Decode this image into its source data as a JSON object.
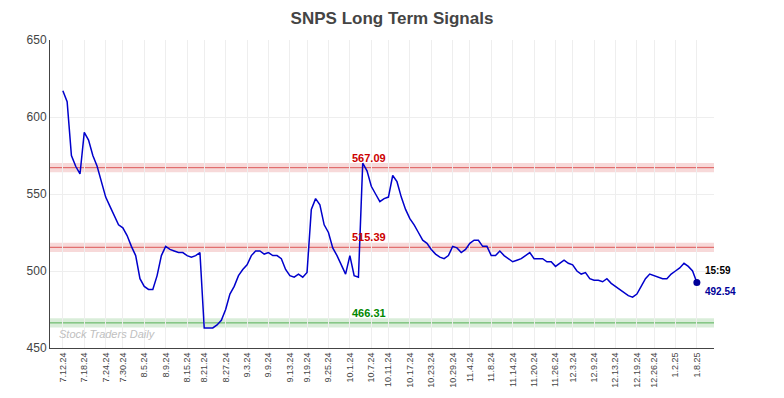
{
  "chart_data": {
    "type": "line",
    "title": "SNPS Long Term Signals",
    "color": "#0000cc",
    "grid": true,
    "ylim": [
      450,
      650
    ],
    "yticks": [
      450,
      500,
      550,
      600,
      650
    ],
    "categories": [
      "7.12.24",
      null,
      null,
      null,
      null,
      "7.18.24",
      null,
      null,
      null,
      null,
      "7.24.24",
      null,
      null,
      null,
      "7.30.24",
      null,
      null,
      null,
      null,
      "8.5.24",
      null,
      null,
      null,
      null,
      "8.9.24",
      null,
      null,
      null,
      null,
      "8.15.24",
      null,
      null,
      null,
      "8.21.24",
      null,
      null,
      null,
      null,
      "8.27.24",
      null,
      null,
      null,
      null,
      "9.3.24",
      null,
      null,
      null,
      null,
      "9.9.24",
      null,
      null,
      null,
      null,
      "9.13.24",
      null,
      null,
      null,
      "9.19.24",
      null,
      null,
      null,
      null,
      "9.25.24",
      null,
      null,
      null,
      null,
      "10.1.24",
      null,
      null,
      null,
      null,
      "10.7.24",
      null,
      null,
      null,
      "10.11.24",
      null,
      null,
      null,
      null,
      "10.17.24",
      null,
      null,
      null,
      null,
      "10.23.24",
      null,
      null,
      null,
      null,
      "10.29.24",
      null,
      null,
      null,
      "11.4.24",
      null,
      null,
      null,
      null,
      "11.8.24",
      null,
      null,
      null,
      null,
      "11.14.24",
      null,
      null,
      null,
      null,
      "11.20.24",
      null,
      null,
      null,
      null,
      "11.26.24",
      null,
      null,
      null,
      "12.3.24",
      null,
      null,
      null,
      null,
      "12.9.24",
      null,
      null,
      null,
      null,
      "12.13.24",
      null,
      null,
      null,
      null,
      "12.19.24",
      null,
      null,
      null,
      "12.26.24",
      null,
      null,
      null,
      null,
      "1.2.25",
      null,
      null,
      null,
      null,
      "1.8.25"
    ],
    "values": [
      617,
      610,
      575,
      568,
      563,
      590,
      585,
      575,
      568,
      558,
      548,
      542,
      536,
      530,
      528,
      523,
      516,
      510,
      495,
      490,
      488,
      488,
      497,
      510,
      516,
      514,
      513,
      512,
      512,
      510,
      509,
      510,
      512,
      463,
      463,
      463,
      465,
      468,
      475,
      485,
      490,
      497,
      501,
      504,
      510,
      513,
      513,
      511,
      512,
      510,
      510,
      508,
      501,
      497,
      496,
      498,
      496,
      499,
      540,
      547,
      543,
      530,
      525,
      515,
      510,
      504,
      498,
      510,
      497,
      496,
      570,
      565,
      555,
      550,
      545,
      547,
      548,
      562,
      558,
      548,
      540,
      534,
      530,
      525,
      520,
      518,
      514,
      511,
      509,
      508,
      510,
      516,
      515,
      512,
      514,
      518,
      520,
      520,
      516,
      516,
      510,
      510,
      513,
      510,
      508,
      506,
      507,
      508,
      510,
      512,
      508,
      508,
      508,
      506,
      506,
      503,
      505,
      507,
      505,
      504,
      500,
      498,
      499,
      495,
      494,
      494,
      493,
      495,
      492,
      490,
      488,
      486,
      484,
      483,
      485,
      490,
      495,
      498,
      497,
      496,
      495,
      495,
      498,
      500,
      502,
      505,
      503,
      500,
      492.54
    ],
    "levels": [
      {
        "value": 567.09,
        "label": "567.09",
        "color": "#cc0000"
      },
      {
        "value": 515.39,
        "label": "515.39",
        "color": "#cc0000"
      },
      {
        "value": 466.31,
        "label": "466.31",
        "color": "#008800"
      }
    ],
    "last_point": {
      "time": "15:59",
      "value": 492.54,
      "color": "#000099"
    },
    "watermark": "Stock Traders Daily"
  }
}
